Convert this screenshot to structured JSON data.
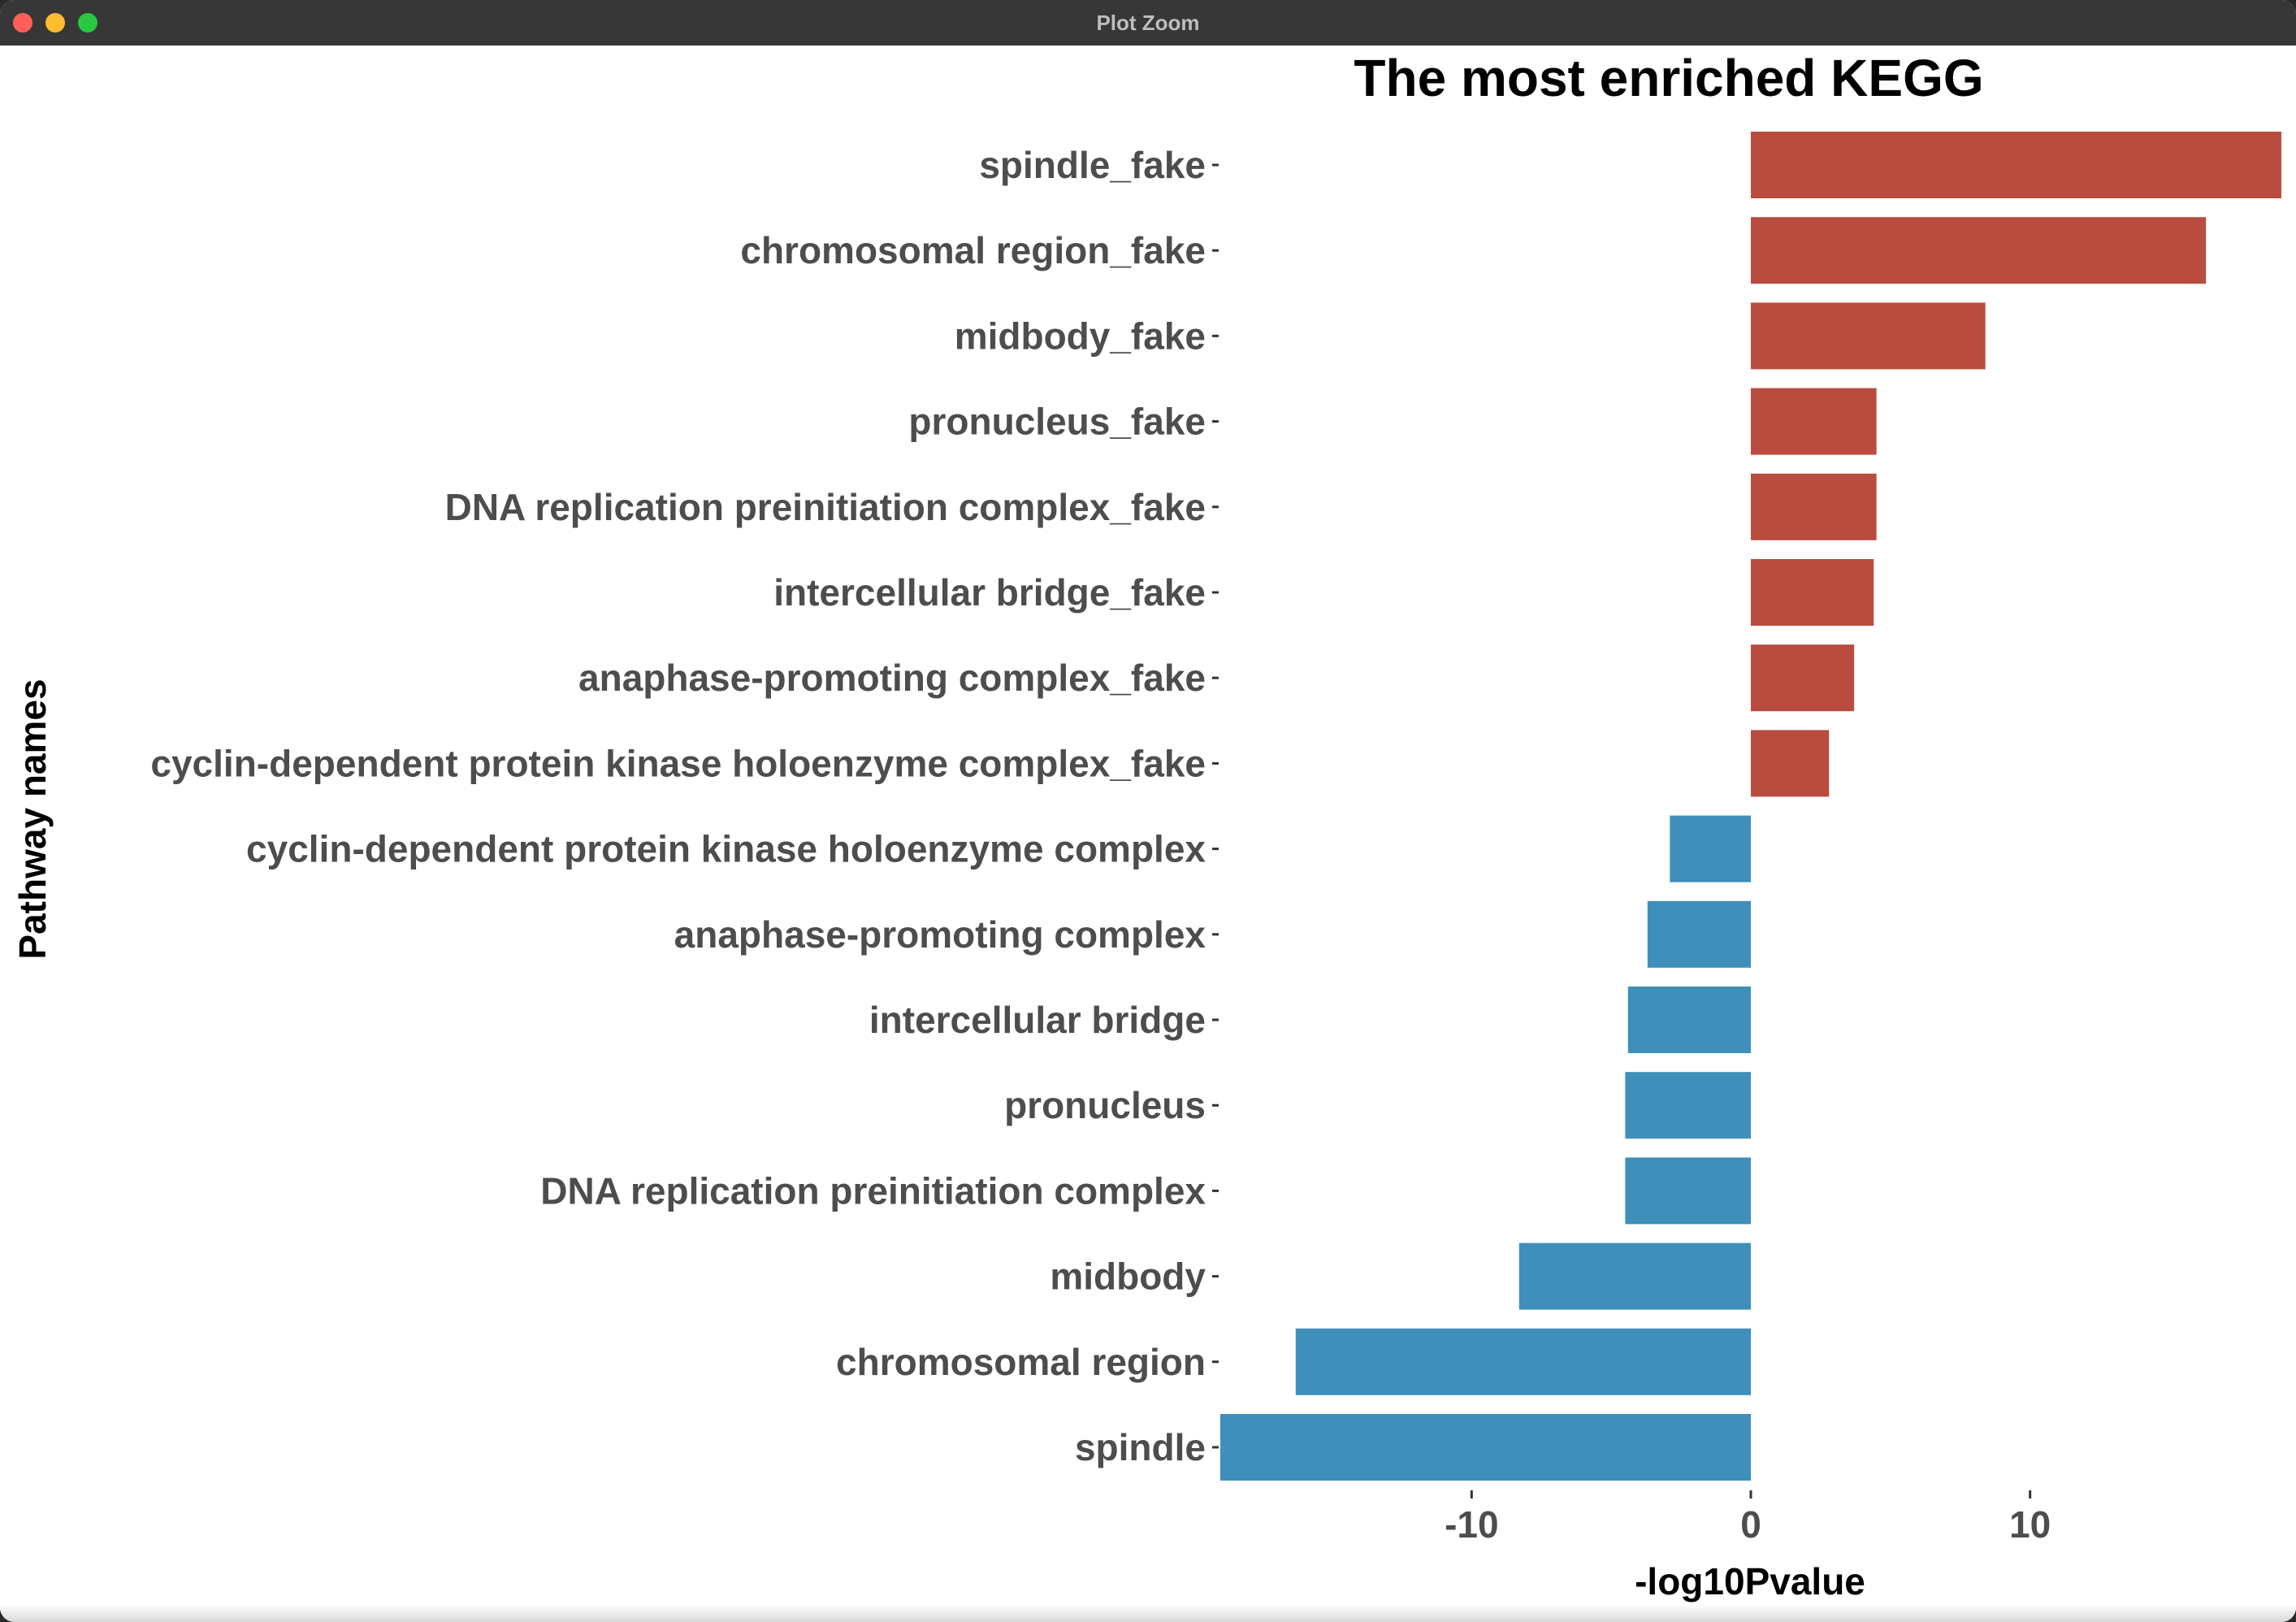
{
  "window": {
    "title": "Plot Zoom"
  },
  "chart_data": {
    "type": "bar",
    "orientation": "horizontal",
    "title": "The most enriched KEGG",
    "xlabel": "-log10Pvalue",
    "ylabel": "Pathway names",
    "xlim": [
      -19,
      19
    ],
    "xticks": [
      -10,
      0,
      10
    ],
    "xtick_labels": [
      "-10",
      "0",
      "10"
    ],
    "grid": false,
    "legend": "none",
    "categories": [
      "spindle_fake",
      "chromosomal region_fake",
      "midbody_fake",
      "pronucleus_fake",
      "DNA replication preinitiation complex_fake",
      "intercellular bridge_fake",
      "anaphase-promoting complex_fake",
      "cyclin-dependent protein kinase holoenzyme complex_fake",
      "cyclin-dependent protein kinase holoenzyme complex",
      "anaphase-promoting complex",
      "intercellular bridge",
      "pronucleus",
      "DNA replication preinitiation complex",
      "midbody",
      "chromosomal region",
      "spindle"
    ],
    "values": [
      19,
      16.3,
      8.4,
      4.5,
      4.5,
      4.4,
      3.7,
      2.8,
      -2.9,
      -3.7,
      -4.4,
      -4.5,
      -4.5,
      -8.3,
      -16.3,
      -19
    ],
    "colors": {
      "positive": "#b94c3f",
      "negative": "#3e8fb9",
      "tick_label": "#4d4d4d",
      "axis_title": "#000000"
    }
  }
}
